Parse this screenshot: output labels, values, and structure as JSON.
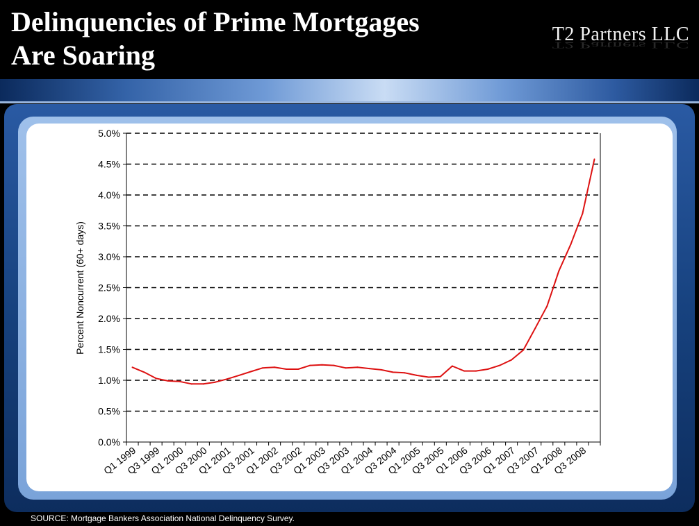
{
  "header": {
    "title_line1": "Delinquencies of Prime Mortgages",
    "title_line2": "Are Soaring",
    "logo_text": "T2 Partners LLC"
  },
  "source": "SOURCE: Mortgage Bankers Association National Delinquency Survey.",
  "colors": {
    "line": "#dd1111",
    "accent": "#3463a8"
  },
  "chart_data": {
    "type": "line",
    "title": "",
    "xlabel": "",
    "ylabel": "Percent Noncurrent (60+ days)",
    "ylim": [
      0,
      5
    ],
    "ytick_labels": [
      "0.0%",
      "0.5%",
      "1.0%",
      "1.5%",
      "2.0%",
      "2.5%",
      "3.0%",
      "3.5%",
      "4.0%",
      "4.5%",
      "5.0%"
    ],
    "grid": "horizontal dashed",
    "legend": "none",
    "x": [
      "Q1 1999",
      "Q2 1999",
      "Q3 1999",
      "Q4 1999",
      "Q1 2000",
      "Q2 2000",
      "Q3 2000",
      "Q4 2000",
      "Q1 2001",
      "Q2 2001",
      "Q3 2001",
      "Q4 2001",
      "Q1 2002",
      "Q2 2002",
      "Q3 2002",
      "Q4 2002",
      "Q1 2003",
      "Q2 2003",
      "Q3 2003",
      "Q4 2003",
      "Q1 2004",
      "Q2 2004",
      "Q3 2004",
      "Q4 2004",
      "Q1 2005",
      "Q2 2005",
      "Q3 2005",
      "Q4 2005",
      "Q1 2006",
      "Q2 2006",
      "Q3 2006",
      "Q4 2006",
      "Q1 2007",
      "Q2 2007",
      "Q3 2007",
      "Q4 2007",
      "Q1 2008",
      "Q2 2008",
      "Q3 2008",
      "Q4 2008"
    ],
    "xtick_labels": [
      "Q1 1999",
      "Q3 1999",
      "Q1 2000",
      "Q3 2000",
      "Q1 2001",
      "Q3 2001",
      "Q1 2002",
      "Q3 2002",
      "Q1 2003",
      "Q3 2003",
      "Q1 2004",
      "Q3 2004",
      "Q1 2005",
      "Q3 2005",
      "Q1 2006",
      "Q3 2006",
      "Q1 2007",
      "Q3 2007",
      "Q1 2008",
      "Q3 2008"
    ],
    "series": [
      {
        "values": [
          1.21,
          1.13,
          1.03,
          0.99,
          0.98,
          0.94,
          0.94,
          0.97,
          1.02,
          1.08,
          1.14,
          1.2,
          1.21,
          1.18,
          1.18,
          1.24,
          1.25,
          1.24,
          1.2,
          1.21,
          1.19,
          1.17,
          1.13,
          1.12,
          1.08,
          1.05,
          1.06,
          1.23,
          1.15,
          1.15,
          1.18,
          1.24,
          1.33,
          1.49,
          1.84,
          2.2,
          2.77,
          3.2,
          3.7,
          4.58
        ]
      }
    ]
  }
}
